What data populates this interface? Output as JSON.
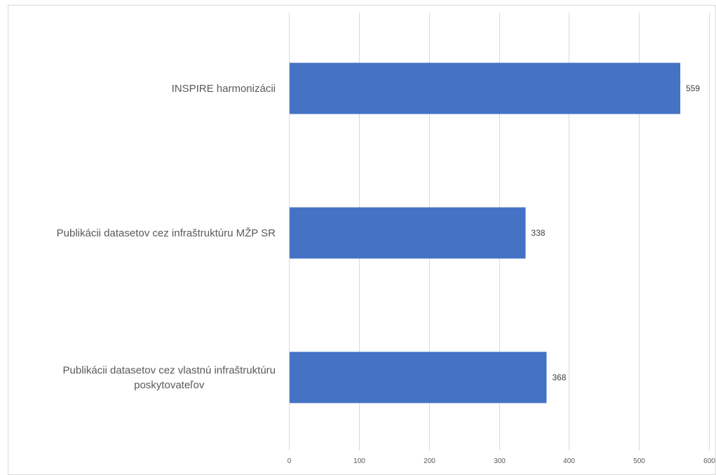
{
  "chart_data": {
    "type": "bar",
    "orientation": "horizontal",
    "categories": [
      "INSPIRE harmonizácii",
      "Publikácii datasetov cez infraštruktúru MŽP SR",
      "Publikácii datasetov cez vlastnú infraštruktúru poskytovateľov"
    ],
    "category_lines": [
      [
        "INSPIRE harmonizácii"
      ],
      [
        "Publikácii datasetov cez infraštruktúru MŽP SR"
      ],
      [
        "Publikácii datasetov cez vlastnú infraštruktúru",
        "poskytovateľov"
      ]
    ],
    "values": [
      559,
      338,
      368
    ],
    "data_labels": [
      "559",
      "338",
      "368"
    ],
    "xlim": [
      0,
      600
    ],
    "xticks": [
      0,
      100,
      200,
      300,
      400,
      500,
      600
    ],
    "xtick_labels": [
      "0",
      "100",
      "200",
      "300",
      "400",
      "500",
      "600"
    ],
    "title": "",
    "xlabel": "",
    "ylabel": "",
    "grid": "vertical",
    "legend": "none",
    "colors": {
      "bar": "#4472c4",
      "grid": "#d9d9d9",
      "text": "#595959",
      "border": "#d9d9d9"
    }
  }
}
